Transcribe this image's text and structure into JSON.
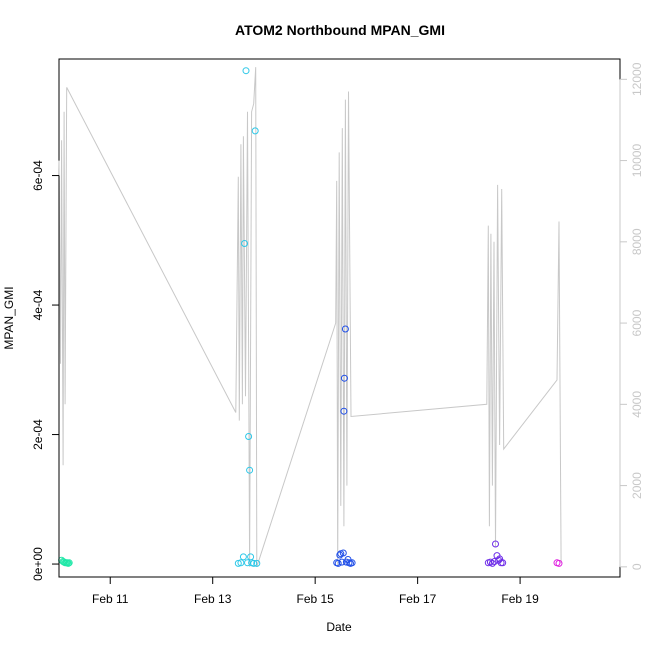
{
  "chart_data": {
    "type": "scatter",
    "title": "ATOM2 Northbound MPAN_GMI",
    "xlabel": "Date",
    "ylabel": "MPAN_GMI",
    "x_unit": "days (Feb 2017 day-of-month)",
    "xlim": [
      10.0,
      20.95
    ],
    "ylim": [
      -2e-05,
      0.00078
    ],
    "x_ticks": [
      {
        "value": 11,
        "label": "Feb 11"
      },
      {
        "value": 13,
        "label": "Feb 13"
      },
      {
        "value": 15,
        "label": "Feb 15"
      },
      {
        "value": 17,
        "label": "Feb 17"
      },
      {
        "value": 19,
        "label": "Feb 19"
      }
    ],
    "y_ticks": [
      {
        "value": 0,
        "label": "0e+00"
      },
      {
        "value": 0.0002,
        "label": "2e-04"
      },
      {
        "value": 0.0004,
        "label": "4e-04"
      },
      {
        "value": 0.0006,
        "label": "6e-04"
      }
    ],
    "y2lim": [
      -250,
      12500
    ],
    "y2_ticks": [
      {
        "value": 0,
        "label": "0"
      },
      {
        "value": 2000,
        "label": "2000"
      },
      {
        "value": 4000,
        "label": "4000"
      },
      {
        "value": 6000,
        "label": "6000"
      },
      {
        "value": 8000,
        "label": "8000"
      },
      {
        "value": 10000,
        "label": "10000"
      },
      {
        "value": 12000,
        "label": "12000"
      }
    ],
    "grid": false,
    "series": [
      {
        "color": "#20e8a8",
        "marker": "circle",
        "points": [
          [
            10.05,
            6e-06
          ],
          [
            10.08,
            4e-06
          ],
          [
            10.1,
            3e-06
          ],
          [
            10.12,
            2e-06
          ],
          [
            10.14,
            2e-06
          ],
          [
            10.16,
            2e-06
          ],
          [
            10.18,
            1e-06
          ],
          [
            10.2,
            2e-06
          ]
        ]
      },
      {
        "color": "#2ec8e8",
        "marker": "circle",
        "points": [
          [
            13.5,
            1e-06
          ],
          [
            13.55,
            2e-06
          ],
          [
            13.6,
            1.1e-05
          ],
          [
            13.62,
            0.000495
          ],
          [
            13.65,
            0.000762
          ],
          [
            13.68,
            2e-06
          ],
          [
            13.7,
            0.000197
          ],
          [
            13.72,
            0.000145
          ],
          [
            13.74,
            1.1e-05
          ],
          [
            13.76,
            2e-06
          ],
          [
            13.8,
            1e-06
          ],
          [
            13.83,
            0.000669
          ],
          [
            13.86,
            1e-06
          ]
        ]
      },
      {
        "color": "#1f4ee8",
        "marker": "circle",
        "points": [
          [
            15.42,
            2e-06
          ],
          [
            15.45,
            1e-06
          ],
          [
            15.48,
            1.4e-05
          ],
          [
            15.5,
            1.6e-05
          ],
          [
            15.52,
            3e-06
          ],
          [
            15.55,
            1.7e-05
          ],
          [
            15.56,
            0.000236
          ],
          [
            15.57,
            0.000287
          ],
          [
            15.59,
            0.000363
          ],
          [
            15.61,
            3e-06
          ],
          [
            15.64,
            7e-06
          ],
          [
            15.66,
            2e-06
          ],
          [
            15.69,
            1e-06
          ],
          [
            15.72,
            2e-06
          ]
        ]
      },
      {
        "color": "#6f2ee8",
        "marker": "circle",
        "points": [
          [
            18.38,
            2e-06
          ],
          [
            18.42,
            3e-06
          ],
          [
            18.46,
            1e-06
          ],
          [
            18.5,
            4e-06
          ],
          [
            18.52,
            3.1e-05
          ],
          [
            18.55,
            1.3e-05
          ],
          [
            18.58,
            6e-06
          ],
          [
            18.6,
            8e-06
          ],
          [
            18.63,
            2e-06
          ],
          [
            18.66,
            2e-06
          ]
        ]
      },
      {
        "color": "#e020e0",
        "marker": "circle",
        "points": [
          [
            19.72,
            2e-06
          ],
          [
            19.76,
            1e-06
          ]
        ]
      }
    ],
    "secondary_series": {
      "color": "#c8c8c8",
      "axis": "right",
      "points": [
        [
          10.0,
          10000
        ],
        [
          10.03,
          5000
        ],
        [
          10.05,
          10500
        ],
        [
          10.08,
          2500
        ],
        [
          10.1,
          11200
        ],
        [
          10.12,
          4000
        ],
        [
          10.15,
          11800
        ],
        [
          13.45,
          3800
        ],
        [
          13.5,
          9600
        ],
        [
          13.52,
          3600
        ],
        [
          13.55,
          10400
        ],
        [
          13.58,
          4000
        ],
        [
          13.6,
          10600
        ],
        [
          13.64,
          4200
        ],
        [
          13.68,
          11200
        ],
        [
          13.72,
          0
        ],
        [
          13.76,
          11200
        ],
        [
          13.8,
          11400
        ],
        [
          13.84,
          12300
        ],
        [
          13.86,
          0
        ],
        [
          15.4,
          6000
        ],
        [
          15.42,
          9500
        ],
        [
          15.44,
          0
        ],
        [
          15.47,
          10200
        ],
        [
          15.5,
          1500
        ],
        [
          15.53,
          10800
        ],
        [
          15.56,
          1000
        ],
        [
          15.59,
          11500
        ],
        [
          15.62,
          2000
        ],
        [
          15.65,
          11700
        ],
        [
          15.7,
          3700
        ],
        [
          18.35,
          4000
        ],
        [
          18.38,
          8400
        ],
        [
          18.4,
          1000
        ],
        [
          18.43,
          8200
        ],
        [
          18.46,
          2000
        ],
        [
          18.49,
          8000
        ],
        [
          18.52,
          500
        ],
        [
          18.56,
          9400
        ],
        [
          18.6,
          3000
        ],
        [
          18.64,
          9300
        ],
        [
          18.68,
          2900
        ],
        [
          19.72,
          4600
        ],
        [
          19.76,
          8500
        ],
        [
          19.8,
          100
        ]
      ]
    }
  }
}
